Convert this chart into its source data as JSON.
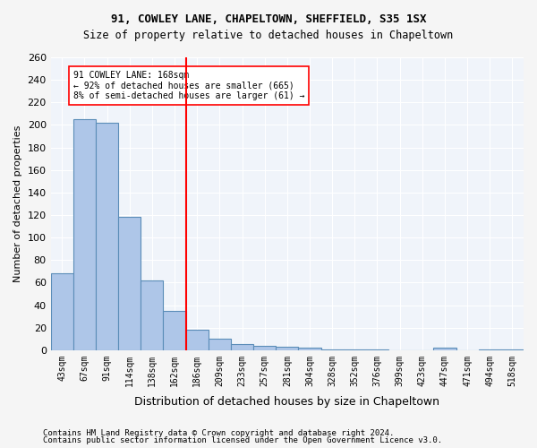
{
  "title1": "91, COWLEY LANE, CHAPELTOWN, SHEFFIELD, S35 1SX",
  "title2": "Size of property relative to detached houses in Chapeltown",
  "xlabel": "Distribution of detached houses by size in Chapeltown",
  "ylabel": "Number of detached properties",
  "categories": [
    "43sqm",
    "67sqm",
    "91sqm",
    "114sqm",
    "138sqm",
    "162sqm",
    "186sqm",
    "209sqm",
    "233sqm",
    "257sqm",
    "281sqm",
    "304sqm",
    "328sqm",
    "352sqm",
    "376sqm",
    "399sqm",
    "423sqm",
    "447sqm",
    "471sqm",
    "494sqm",
    "518sqm"
  ],
  "values": [
    68,
    205,
    202,
    118,
    62,
    35,
    18,
    10,
    5,
    4,
    3,
    2,
    1,
    1,
    1,
    0,
    0,
    2,
    0,
    1,
    1
  ],
  "bar_color": "#aec6e8",
  "bar_edge_color": "#5b8db8",
  "property_line_x": 5.5,
  "annotation_line": "91 COWLEY LANE: 168sqm",
  "annotation_smaller": "← 92% of detached houses are smaller (665)",
  "annotation_larger": "8% of semi-detached houses are larger (61) →",
  "ylim": [
    0,
    260
  ],
  "yticks": [
    0,
    20,
    40,
    60,
    80,
    100,
    120,
    140,
    160,
    180,
    200,
    220,
    240,
    260
  ],
  "background_color": "#f0f4fa",
  "grid_color": "#ffffff",
  "footnote1": "Contains HM Land Registry data © Crown copyright and database right 2024.",
  "footnote2": "Contains public sector information licensed under the Open Government Licence v3.0."
}
